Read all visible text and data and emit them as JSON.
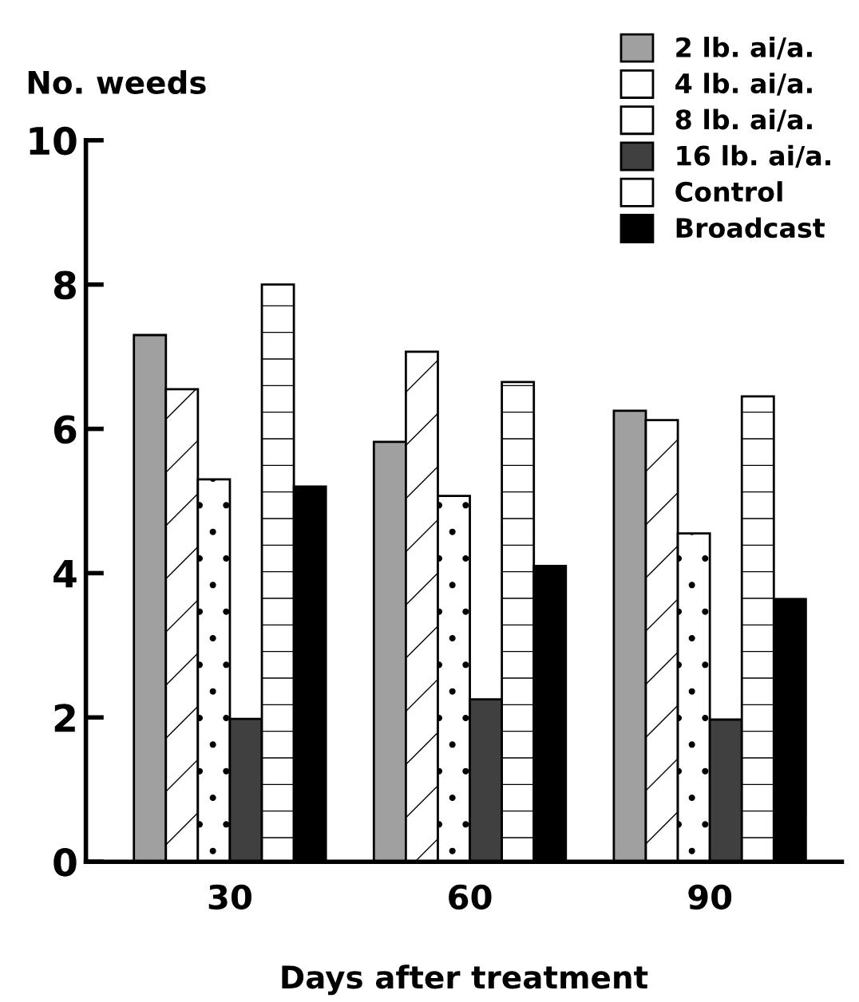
{
  "chart_data": {
    "type": "bar",
    "xlabel": "Days after treatment",
    "ylabel": "No. weeds",
    "categories": [
      "30",
      "60",
      "90"
    ],
    "series": [
      {
        "name": "2 lb. ai/a.",
        "color": "#a0a0a0",
        "values": [
          7.3,
          5.82,
          6.25
        ]
      },
      {
        "name": "4 lb. ai/a.",
        "color": "#ffffff",
        "values": [
          6.55,
          7.07,
          6.12
        ]
      },
      {
        "name": "8 lb. ai/a.",
        "color": "#ffffff",
        "values": [
          5.3,
          5.07,
          4.55
        ]
      },
      {
        "name": "16 lb. ai/a.",
        "color": "#404040",
        "values": [
          1.98,
          2.25,
          1.97
        ]
      },
      {
        "name": "Control",
        "color": "#ffffff",
        "values": [
          8.0,
          6.65,
          6.45
        ]
      },
      {
        "name": "Broadcast",
        "color": "#000000",
        "values": [
          5.2,
          4.1,
          3.64
        ]
      }
    ],
    "ylim": [
      0,
      10
    ],
    "yticks": [
      0,
      2,
      4,
      6,
      8,
      10
    ],
    "grid": false,
    "legend": "top right"
  }
}
